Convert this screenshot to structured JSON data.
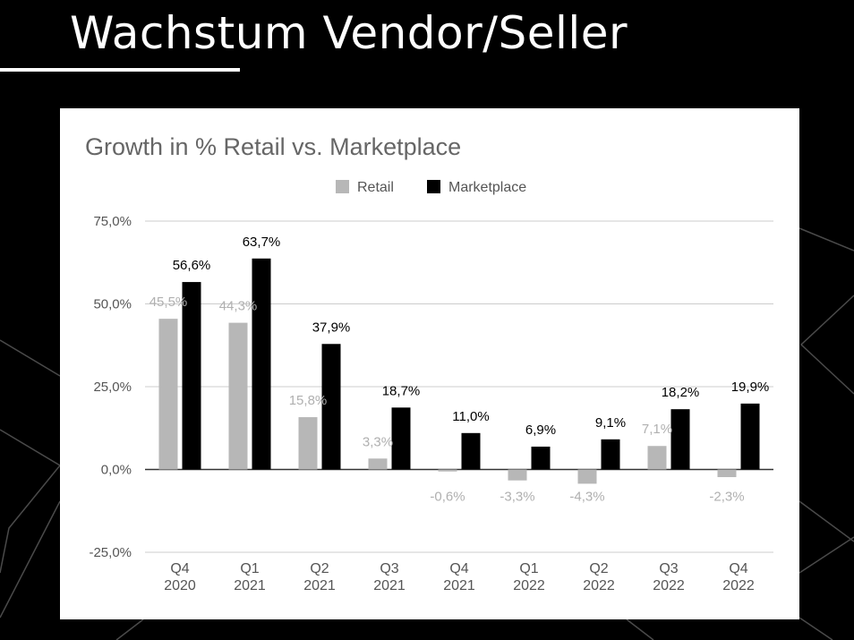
{
  "slide": {
    "title": "Wachstum Vendor/Seller"
  },
  "chart_data": {
    "type": "bar",
    "title": "Growth in % Retail vs. Marketplace",
    "xlabel": "",
    "ylabel": "",
    "categories": [
      [
        "Q4",
        "2020"
      ],
      [
        "Q1",
        "2021"
      ],
      [
        "Q2",
        "2021"
      ],
      [
        "Q3",
        "2021"
      ],
      [
        "Q4",
        "2021"
      ],
      [
        "Q1",
        "2022"
      ],
      [
        "Q2",
        "2022"
      ],
      [
        "Q3",
        "2022"
      ],
      [
        "Q4",
        "2022"
      ]
    ],
    "series": [
      {
        "name": "Retail",
        "color": "#b7b7b7",
        "values": [
          45.5,
          44.3,
          15.8,
          3.3,
          -0.6,
          -3.3,
          -4.3,
          7.1,
          -2.3
        ],
        "labels": [
          "45,5%",
          "44,3%",
          "15,8%",
          "3,3%",
          "-0,6%",
          "-3,3%",
          "-4,3%",
          "7,1%",
          "-2,3%"
        ]
      },
      {
        "name": "Marketplace",
        "color": "#000000",
        "values": [
          56.6,
          63.7,
          37.9,
          18.7,
          11.0,
          6.9,
          9.1,
          18.2,
          19.9
        ],
        "labels": [
          "56,6%",
          "63,7%",
          "37,9%",
          "18,7%",
          "11,0%",
          "6,9%",
          "9,1%",
          "18,2%",
          "19,9%"
        ]
      }
    ],
    "ylim": [
      -25,
      75
    ],
    "yticks": [
      75,
      50,
      25,
      0,
      -25
    ],
    "ytick_labels": [
      "75,0%",
      "50,0%",
      "25,0%",
      "0,0%",
      "-25,0%"
    ],
    "legend_position": "top",
    "grid": true
  }
}
